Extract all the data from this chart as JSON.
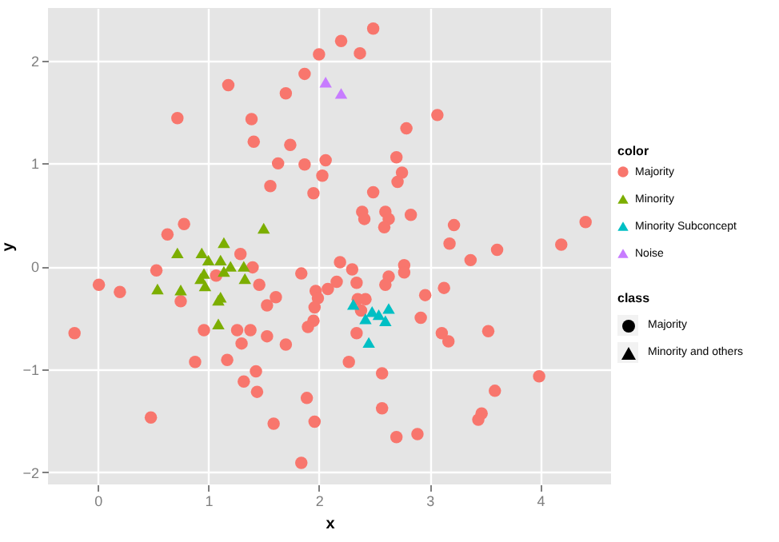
{
  "chart_data": {
    "type": "scatter",
    "xlabel": "x",
    "ylabel": "y",
    "legend_title": "color",
    "annotations": [
      "class",
      "Majority",
      "Minority and others"
    ],
    "legend": "right",
    "grid": true,
    "xlim": [
      -0.45,
      4.64
    ],
    "ylim": [
      -2.12,
      2.51
    ],
    "xticks": [
      0,
      1,
      2,
      3,
      4
    ],
    "yticks": [
      -2,
      -1,
      0,
      1,
      2
    ],
    "series": [
      {
        "name": "Majority",
        "color": "#f8766d",
        "marker": "circle",
        "x": [
          2.49,
          2.2,
          2.37,
          2.0,
          1.87,
          1.7,
          1.18,
          0.72,
          1.39,
          1.41,
          1.74,
          3.07,
          2.79,
          1.63,
          1.87,
          2.06,
          2.03,
          1.56,
          1.95,
          0.63,
          0.78,
          1.29,
          2.7,
          2.75,
          2.71,
          2.49,
          2.39,
          2.41,
          2.6,
          2.63,
          2.59,
          2.83,
          3.22,
          3.18,
          3.61,
          4.19,
          4.41,
          2.19,
          2.3,
          2.16,
          2.08,
          1.97,
          1.99,
          1.96,
          1.95,
          2.34,
          2.63,
          2.6,
          2.77,
          2.77,
          3.37,
          3.13,
          2.96,
          2.35,
          2.42,
          2.38,
          2.92,
          2.34,
          3.11,
          3.17,
          3.53,
          2.27,
          2.57,
          3.99,
          3.59,
          2.57,
          3.47,
          3.44,
          2.7,
          2.89,
          1.96,
          0.01,
          0.2,
          -0.21,
          0.53,
          0.75,
          1.4,
          1.07,
          1.46,
          1.61,
          1.53,
          1.84,
          1.9,
          0.96,
          1.26,
          1.38,
          1.3,
          1.53,
          1.7,
          0.88,
          1.17,
          1.43,
          1.32,
          1.44,
          0.48,
          1.59,
          1.89,
          1.84
        ],
        "values": [
          2.31,
          2.19,
          2.07,
          2.06,
          1.87,
          1.68,
          1.76,
          1.44,
          1.43,
          1.21,
          1.18,
          1.47,
          1.34,
          1.0,
          0.99,
          1.03,
          0.88,
          0.78,
          0.71,
          0.31,
          0.41,
          0.12,
          1.06,
          0.91,
          0.82,
          0.72,
          0.53,
          0.46,
          0.53,
          0.46,
          0.38,
          0.5,
          0.4,
          0.22,
          0.16,
          0.21,
          0.43,
          0.04,
          -0.03,
          -0.15,
          -0.22,
          -0.24,
          -0.31,
          -0.4,
          -0.53,
          -0.16,
          -0.1,
          -0.18,
          0.01,
          -0.06,
          0.06,
          -0.21,
          -0.28,
          -0.32,
          -0.32,
          -0.43,
          -0.5,
          -0.65,
          -0.65,
          -0.73,
          -0.63,
          -0.93,
          -1.04,
          -1.07,
          -1.21,
          -1.38,
          -1.43,
          -1.49,
          -1.66,
          -1.63,
          -1.51,
          -0.18,
          -0.25,
          -0.65,
          -0.04,
          -0.34,
          -0.01,
          -0.09,
          -0.18,
          -0.3,
          -0.38,
          -0.07,
          -0.59,
          -0.62,
          -0.62,
          -0.62,
          -0.75,
          -0.68,
          -0.76,
          -0.93,
          -0.91,
          -1.02,
          -1.12,
          -1.22,
          -1.47,
          -1.53,
          -1.28,
          -1.91
        ]
      },
      {
        "name": "Minority",
        "color": "#7cae00",
        "marker": "triangle",
        "x": [
          1.5,
          1.14,
          0.72,
          0.94,
          1.0,
          1.11,
          1.2,
          1.32,
          0.96,
          0.93,
          1.14,
          1.33,
          0.97,
          0.54,
          0.75,
          1.09,
          1.11,
          1.09
        ],
        "values": [
          0.37,
          0.23,
          0.13,
          0.13,
          0.06,
          0.06,
          0.0,
          0.0,
          -0.07,
          -0.12,
          -0.05,
          -0.12,
          -0.19,
          -0.22,
          -0.23,
          -0.33,
          -0.3,
          -0.56
        ]
      },
      {
        "name": "Minority Subconcept",
        "color": "#00bfc4",
        "marker": "triangle",
        "x": [
          2.31,
          2.42,
          2.48,
          2.54,
          2.63,
          2.6,
          2.45
        ],
        "values": [
          -0.37,
          -0.51,
          -0.44,
          -0.47,
          -0.41,
          -0.53,
          -0.74
        ]
      },
      {
        "name": "Noise",
        "color": "#c77cff",
        "marker": "triangle",
        "x": [
          2.06,
          2.2
        ],
        "values": [
          1.79,
          1.68
        ]
      }
    ]
  }
}
